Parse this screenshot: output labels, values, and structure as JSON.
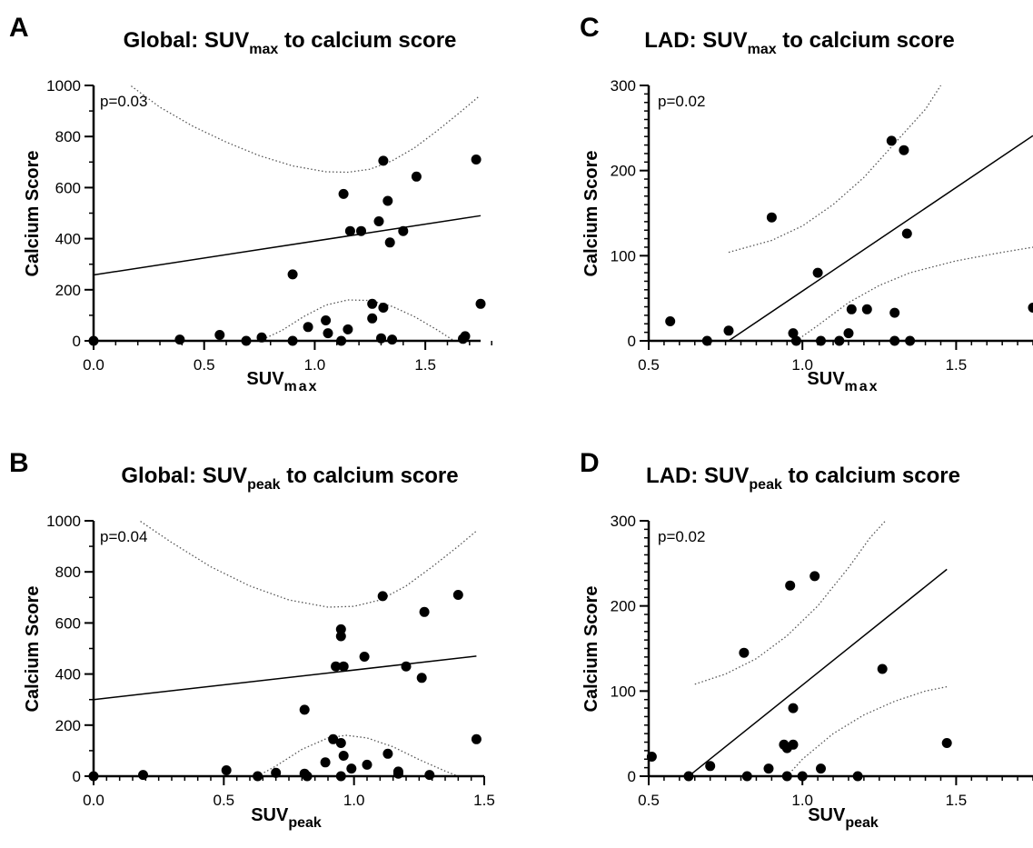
{
  "colors": {
    "points": "#000000",
    "axis": "#000000",
    "fit_line": "#000000",
    "ci_line": "#555555"
  },
  "chart_data": [
    {
      "panel": "A",
      "type": "scatter",
      "title": {
        "pre": "Global: SUV",
        "sub": "max",
        "post": " to calcium score"
      },
      "xlabel": {
        "pre": "SUV",
        "sub": "max"
      },
      "ylabel": "Calcium Score",
      "annotation": "p=0.03",
      "xlim": [
        0,
        1.75
      ],
      "ylim": [
        0,
        1000
      ],
      "xticks": [
        0,
        0.5,
        1.0,
        1.5
      ],
      "xtick_labels": [
        "0.0",
        "0.5",
        "1.0",
        "1.5"
      ],
      "xminor": 0.1,
      "yticks": [
        0,
        200,
        400,
        600,
        800,
        1000
      ],
      "ytick_labels": [
        "0",
        "200",
        "400",
        "600",
        "800",
        "1000"
      ],
      "yminor": 100,
      "points": [
        [
          0.0,
          0
        ],
        [
          0.39,
          5
        ],
        [
          0.57,
          23
        ],
        [
          0.69,
          0
        ],
        [
          0.76,
          13
        ],
        [
          0.9,
          0
        ],
        [
          0.9,
          260
        ],
        [
          0.97,
          54
        ],
        [
          1.05,
          80
        ],
        [
          1.06,
          30
        ],
        [
          1.12,
          0
        ],
        [
          1.13,
          575
        ],
        [
          1.15,
          45
        ],
        [
          1.16,
          430
        ],
        [
          1.21,
          430
        ],
        [
          1.26,
          88
        ],
        [
          1.26,
          145
        ],
        [
          1.29,
          468
        ],
        [
          1.3,
          10
        ],
        [
          1.31,
          130
        ],
        [
          1.31,
          705
        ],
        [
          1.33,
          548
        ],
        [
          1.34,
          385
        ],
        [
          1.35,
          5
        ],
        [
          1.4,
          430
        ],
        [
          1.46,
          643
        ],
        [
          1.67,
          8
        ],
        [
          1.68,
          18
        ],
        [
          1.73,
          710
        ],
        [
          1.75,
          145
        ]
      ],
      "fit_line": [
        [
          0.0,
          258
        ],
        [
          1.75,
          490
        ]
      ],
      "ci_upper": [
        [
          0.17,
          998
        ],
        [
          0.3,
          915
        ],
        [
          0.45,
          840
        ],
        [
          0.6,
          778
        ],
        [
          0.75,
          725
        ],
        [
          0.9,
          685
        ],
        [
          1.05,
          662
        ],
        [
          1.15,
          660
        ],
        [
          1.25,
          672
        ],
        [
          1.35,
          705
        ],
        [
          1.45,
          755
        ],
        [
          1.55,
          820
        ],
        [
          1.65,
          890
        ],
        [
          1.74,
          955
        ]
      ],
      "ci_lower": [
        [
          0.75,
          0
        ],
        [
          0.85,
          40
        ],
        [
          0.95,
          95
        ],
        [
          1.05,
          140
        ],
        [
          1.15,
          160
        ],
        [
          1.25,
          158
        ],
        [
          1.35,
          135
        ],
        [
          1.45,
          95
        ],
        [
          1.55,
          45
        ],
        [
          1.63,
          0
        ]
      ]
    },
    {
      "panel": "B",
      "type": "scatter",
      "title": {
        "pre": "Global: SUV",
        "sub": "peak",
        "post": " to calcium score"
      },
      "xlabel": {
        "pre": "SUV",
        "sub": "peak"
      },
      "ylabel": "Calcium Score",
      "annotation": "p=0.04",
      "xlim": [
        0,
        1.5
      ],
      "ylim": [
        0,
        1000
      ],
      "xticks": [
        0,
        0.5,
        1.0,
        1.5
      ],
      "xtick_labels": [
        "0.0",
        "0.5",
        "1.0",
        "1.5"
      ],
      "xminor": 0.05,
      "yticks": [
        0,
        200,
        400,
        600,
        800,
        1000
      ],
      "ytick_labels": [
        "0",
        "200",
        "400",
        "600",
        "800",
        "1000"
      ],
      "yminor": 100,
      "points": [
        [
          0.0,
          0
        ],
        [
          0.19,
          5
        ],
        [
          0.51,
          23
        ],
        [
          0.63,
          0
        ],
        [
          0.7,
          13
        ],
        [
          0.81,
          10
        ],
        [
          0.81,
          260
        ],
        [
          0.82,
          0
        ],
        [
          0.89,
          54
        ],
        [
          0.92,
          145
        ],
        [
          0.93,
          430
        ],
        [
          0.95,
          575
        ],
        [
          0.95,
          548
        ],
        [
          0.95,
          130
        ],
        [
          0.95,
          0
        ],
        [
          0.96,
          80
        ],
        [
          0.96,
          430
        ],
        [
          0.99,
          30
        ],
        [
          1.04,
          468
        ],
        [
          1.05,
          45
        ],
        [
          1.11,
          705
        ],
        [
          1.13,
          88
        ],
        [
          1.17,
          10
        ],
        [
          1.17,
          18
        ],
        [
          1.2,
          430
        ],
        [
          1.26,
          385
        ],
        [
          1.27,
          643
        ],
        [
          1.29,
          5
        ],
        [
          1.4,
          710
        ],
        [
          1.47,
          145
        ]
      ],
      "fit_line": [
        [
          0.0,
          300
        ],
        [
          1.47,
          470
        ]
      ],
      "ci_upper": [
        [
          0.18,
          998
        ],
        [
          0.3,
          915
        ],
        [
          0.45,
          820
        ],
        [
          0.6,
          745
        ],
        [
          0.75,
          690
        ],
        [
          0.9,
          662
        ],
        [
          1.0,
          665
        ],
        [
          1.1,
          690
        ],
        [
          1.2,
          745
        ],
        [
          1.3,
          820
        ],
        [
          1.4,
          900
        ],
        [
          1.47,
          960
        ]
      ],
      "ci_lower": [
        [
          0.63,
          0
        ],
        [
          0.7,
          40
        ],
        [
          0.8,
          105
        ],
        [
          0.9,
          150
        ],
        [
          0.97,
          160
        ],
        [
          1.05,
          150
        ],
        [
          1.15,
          115
        ],
        [
          1.25,
          65
        ],
        [
          1.35,
          20
        ],
        [
          1.4,
          0
        ]
      ]
    },
    {
      "panel": "C",
      "type": "scatter",
      "title": {
        "pre": "LAD: SUV",
        "sub": "max",
        "post": " to calcium score"
      },
      "xlabel": {
        "pre": "SUV",
        "sub": "max"
      },
      "ylabel": "Calcium Score",
      "annotation": "p=0.02",
      "xlim": [
        0.5,
        1.75
      ],
      "ylim": [
        0,
        300
      ],
      "xticks": [
        0.5,
        1.0,
        1.5
      ],
      "xtick_labels": [
        "0.5",
        "1.0",
        "1.5"
      ],
      "xminor": 0.05,
      "yticks": [
        0,
        100,
        200,
        300
      ],
      "ytick_labels": [
        "0",
        "100",
        "200",
        "300"
      ],
      "yminor": 10,
      "points": [
        [
          0.57,
          23
        ],
        [
          0.69,
          0
        ],
        [
          0.76,
          12
        ],
        [
          0.9,
          145
        ],
        [
          0.97,
          9
        ],
        [
          0.98,
          0
        ],
        [
          1.05,
          80
        ],
        [
          1.06,
          0
        ],
        [
          1.12,
          0
        ],
        [
          1.15,
          9
        ],
        [
          1.16,
          37
        ],
        [
          1.21,
          37
        ],
        [
          1.29,
          235
        ],
        [
          1.3,
          33
        ],
        [
          1.3,
          0
        ],
        [
          1.33,
          224
        ],
        [
          1.34,
          126
        ],
        [
          1.35,
          0
        ],
        [
          1.75,
          39
        ]
      ],
      "fit_line": [
        [
          0.76,
          0
        ],
        [
          1.75,
          241
        ]
      ],
      "ci_upper": [
        [
          0.76,
          104
        ],
        [
          0.9,
          118
        ],
        [
          1.0,
          135
        ],
        [
          1.1,
          160
        ],
        [
          1.2,
          192
        ],
        [
          1.3,
          232
        ],
        [
          1.4,
          272
        ],
        [
          1.45,
          300
        ]
      ],
      "ci_lower": [
        [
          0.98,
          0
        ],
        [
          1.05,
          18
        ],
        [
          1.15,
          45
        ],
        [
          1.25,
          65
        ],
        [
          1.35,
          80
        ],
        [
          1.5,
          94
        ],
        [
          1.65,
          104
        ],
        [
          1.75,
          110
        ]
      ]
    },
    {
      "panel": "D",
      "type": "scatter",
      "title": {
        "pre": "LAD: SUV",
        "sub": "peak",
        "post": " to calcium score"
      },
      "xlabel": {
        "pre": "SUV",
        "sub": "peak"
      },
      "ylabel": "Calcium Score",
      "annotation": "p=0.02",
      "xlim": [
        0.5,
        1.75
      ],
      "ylim": [
        0,
        300
      ],
      "xticks": [
        0.5,
        1.0,
        1.5
      ],
      "xtick_labels": [
        "0.5",
        "1.0",
        "1.5"
      ],
      "xminor": 0.05,
      "yticks": [
        0,
        100,
        200,
        300
      ],
      "ytick_labels": [
        "0",
        "100",
        "200",
        "300"
      ],
      "yminor": 10,
      "points": [
        [
          0.51,
          23
        ],
        [
          0.63,
          0
        ],
        [
          0.7,
          12
        ],
        [
          0.81,
          145
        ],
        [
          0.82,
          0
        ],
        [
          0.89,
          9
        ],
        [
          0.94,
          37
        ],
        [
          0.95,
          0
        ],
        [
          0.95,
          33
        ],
        [
          0.96,
          224
        ],
        [
          0.97,
          37
        ],
        [
          0.97,
          80
        ],
        [
          1.0,
          0
        ],
        [
          1.04,
          235
        ],
        [
          1.06,
          9
        ],
        [
          1.18,
          0
        ],
        [
          1.26,
          126
        ],
        [
          1.47,
          39
        ]
      ],
      "fit_line": [
        [
          0.63,
          0
        ],
        [
          1.47,
          243
        ]
      ],
      "ci_upper": [
        [
          0.65,
          108
        ],
        [
          0.75,
          120
        ],
        [
          0.85,
          138
        ],
        [
          0.95,
          165
        ],
        [
          1.05,
          200
        ],
        [
          1.15,
          245
        ],
        [
          1.22,
          280
        ],
        [
          1.27,
          300
        ]
      ],
      "ci_lower": [
        [
          0.95,
          0
        ],
        [
          1.0,
          20
        ],
        [
          1.1,
          50
        ],
        [
          1.2,
          72
        ],
        [
          1.3,
          88
        ],
        [
          1.4,
          100
        ],
        [
          1.47,
          105
        ]
      ]
    }
  ]
}
